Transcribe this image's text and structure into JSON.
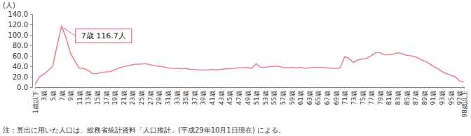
{
  "chart_data": {
    "type": "line",
    "y_label": "(人)",
    "annotation": "7歳 116.7人",
    "footnote": "注：算出に用いた人口は、総務省統計資料「人口推計」(平成29年10月1日現在) による。",
    "color": "#ef8593",
    "categories": [
      "1歳以下",
      null,
      "3歳",
      null,
      "5歳",
      null,
      "7歳",
      null,
      "9歳",
      null,
      "11歳",
      null,
      "13歳",
      null,
      "15歳",
      null,
      "17歳",
      null,
      "19歳",
      null,
      "21歳",
      null,
      "23歳",
      null,
      "25歳",
      null,
      "27歳",
      null,
      "29歳",
      null,
      "31歳",
      null,
      "33歳",
      null,
      "35歳",
      null,
      "37歳",
      null,
      "39歳",
      null,
      "41歳",
      null,
      "43歳",
      null,
      "45歳",
      null,
      "47歳",
      null,
      "49歳",
      null,
      "51歳",
      null,
      "53歳",
      null,
      "55歳",
      null,
      "57歳",
      null,
      "59歳",
      null,
      "61歳",
      null,
      "63歳",
      null,
      "65歳",
      null,
      "67歳",
      null,
      "69歳",
      null,
      "71歳",
      null,
      "73歳",
      null,
      "75歳",
      null,
      "77歳",
      null,
      "79歳",
      null,
      "81歳",
      null,
      "83歳",
      null,
      "85歳",
      null,
      "87歳",
      null,
      "89歳",
      null,
      "91歳",
      null,
      "93歳",
      null,
      "95歳",
      null,
      "97歳",
      "98歳以上"
    ],
    "values": [
      5,
      20,
      25,
      32,
      40,
      80,
      116.7,
      95,
      65,
      50,
      36,
      36,
      32,
      26,
      26,
      28,
      29,
      30,
      33,
      37,
      39,
      41,
      43,
      44,
      44,
      45,
      43,
      41,
      40,
      39,
      37,
      36,
      36,
      35,
      36,
      34,
      34,
      33,
      33,
      33,
      34,
      33,
      34,
      35,
      35,
      36,
      37,
      37,
      38,
      36,
      45,
      38,
      38,
      39,
      40,
      40,
      38,
      37,
      38,
      37,
      38,
      36,
      37,
      38,
      38,
      38,
      37,
      36,
      36,
      37,
      58,
      55,
      47,
      52,
      54,
      55,
      60,
      66,
      66,
      62,
      62,
      63,
      66,
      64,
      61,
      60,
      58,
      54,
      50,
      46,
      40,
      36,
      30,
      26,
      23,
      20,
      12,
      10
    ],
    "ylim": [
      0,
      140
    ],
    "yticks": [
      {
        "value": 0,
        "label": "0.0"
      },
      {
        "value": 20,
        "label": "20.0"
      },
      {
        "value": 40,
        "label": "40.0"
      },
      {
        "value": 60,
        "label": "60.0"
      },
      {
        "value": 80,
        "label": "80.0"
      },
      {
        "value": 100,
        "label": "100.0"
      },
      {
        "value": 120,
        "label": "120.0"
      },
      {
        "value": 140,
        "label": "140.0"
      }
    ],
    "grid": false
  }
}
